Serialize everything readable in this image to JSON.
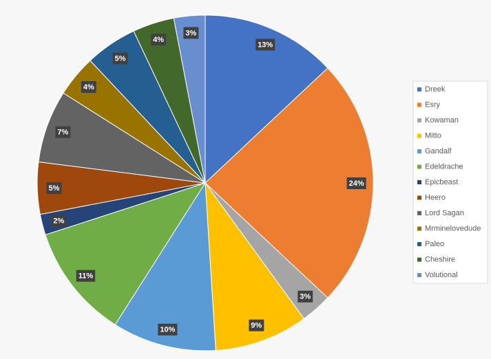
{
  "chart_data": {
    "type": "pie",
    "categories": [
      "Dreek",
      "Esry",
      "Kowaman",
      "Mitto",
      "Gandalf",
      "Edeldrache",
      "Epicbeast",
      "Heero",
      "Lord Sagan",
      "Mrminelovedude",
      "Paleo",
      "Cheshire",
      "Volutional"
    ],
    "values": [
      13,
      24,
      3,
      9,
      10,
      11,
      2,
      5,
      7,
      4,
      5,
      4,
      3
    ],
    "value_labels": [
      "13%",
      "24%",
      "3%",
      "9%",
      "10%",
      "11%",
      "2%",
      "5%",
      "7%",
      "4%",
      "5%",
      "4%",
      "3%"
    ],
    "colors": [
      "#4472c4",
      "#ed7d31",
      "#a5a5a5",
      "#ffc000",
      "#5b9bd5",
      "#70ad47",
      "#264478",
      "#9e480e",
      "#636363",
      "#997300",
      "#255e91",
      "#43682b",
      "#698ed0"
    ],
    "legend": "right"
  }
}
